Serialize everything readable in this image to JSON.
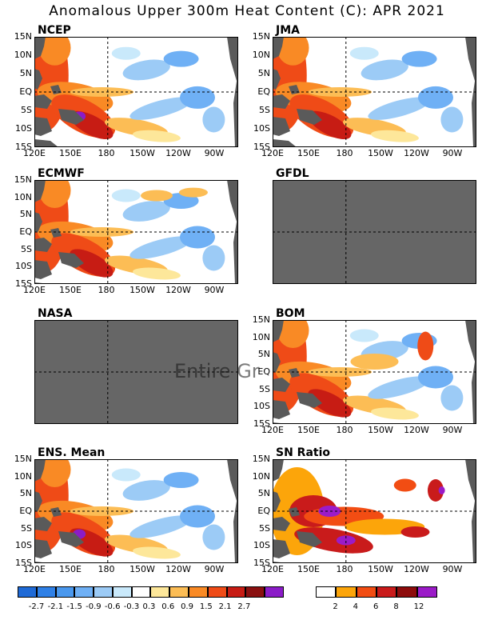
{
  "title": "Anomalous Upper 300m Heat Content (C): APR 2021",
  "overlay_text": "Entire  Gr",
  "colors": {
    "land": "#5a5a5a",
    "missing": "#666666",
    "anom_scale": [
      "#1f6ad6",
      "#2f80e6",
      "#4a98ee",
      "#6fb0f5",
      "#9ccbf6",
      "#c9e9fb",
      "#ffffff",
      "#fde79a",
      "#fcbd55",
      "#f98a25",
      "#ef4b17",
      "#c71c14",
      "#8a1010",
      "#8b1cc8"
    ],
    "sn_scale": [
      "#ffffff",
      "#fca50a",
      "#f24d13",
      "#c91b1b",
      "#8d0c0c",
      "#9b1bc8"
    ]
  },
  "axes": {
    "y_ticks": [
      "15N",
      "10N",
      "5N",
      "EQ",
      "5S",
      "10S",
      "15S"
    ],
    "x_ticks": [
      "120E",
      "150E",
      "180",
      "150W",
      "120W",
      "90W"
    ]
  },
  "panels": [
    {
      "id": "ncep",
      "title": "NCEP",
      "missing": false
    },
    {
      "id": "jma",
      "title": "JMA",
      "missing": false
    },
    {
      "id": "ecmwf",
      "title": "ECMWF",
      "missing": false
    },
    {
      "id": "gfdl",
      "title": "GFDL",
      "missing": true
    },
    {
      "id": "nasa",
      "title": "NASA",
      "missing": true
    },
    {
      "id": "bom",
      "title": "BOM",
      "missing": false
    },
    {
      "id": "ens",
      "title": "ENS. Mean",
      "missing": false
    },
    {
      "id": "sn",
      "title": "SN Ratio",
      "missing": false
    }
  ],
  "chart_data": [
    {
      "type": "heatmap",
      "title": "NCEP",
      "variable": "upper 300m heat content anomaly (C)",
      "ylim": [
        "15S",
        "15N"
      ],
      "xlim": [
        "120E",
        "70W"
      ]
    },
    {
      "type": "heatmap",
      "title": "JMA",
      "variable": "upper 300m heat content anomaly (C)",
      "ylim": [
        "15S",
        "15N"
      ],
      "xlim": [
        "120E",
        "70W"
      ]
    },
    {
      "type": "heatmap",
      "title": "ECMWF",
      "variable": "upper 300m heat content anomaly (C)",
      "ylim": [
        "15S",
        "15N"
      ],
      "xlim": [
        "120E",
        "70W"
      ]
    },
    {
      "type": "heatmap",
      "title": "GFDL",
      "variable": "no data (entire grid missing)"
    },
    {
      "type": "heatmap",
      "title": "NASA",
      "variable": "no data (entire grid missing)"
    },
    {
      "type": "heatmap",
      "title": "BOM",
      "variable": "upper 300m heat content anomaly (C)",
      "ylim": [
        "15S",
        "15N"
      ],
      "xlim": [
        "120E",
        "70W"
      ]
    },
    {
      "type": "heatmap",
      "title": "ENS. Mean",
      "variable": "upper 300m heat content anomaly (C)",
      "ylim": [
        "15S",
        "15N"
      ],
      "xlim": [
        "120E",
        "70W"
      ]
    },
    {
      "type": "heatmap",
      "title": "SN Ratio",
      "variable": "signal-to-noise ratio",
      "ylim": [
        "15S",
        "15N"
      ],
      "xlim": [
        "120E",
        "70W"
      ]
    }
  ],
  "legend_anom": {
    "labels": [
      "-2.7",
      "-2.1",
      "-1.5",
      "-0.9",
      "-0.6",
      "-0.3",
      "0.3",
      "0.6",
      "0.9",
      "1.5",
      "2.1",
      "2.7"
    ]
  },
  "legend_sn": {
    "labels": [
      "2",
      "4",
      "6",
      "8",
      "12"
    ]
  }
}
